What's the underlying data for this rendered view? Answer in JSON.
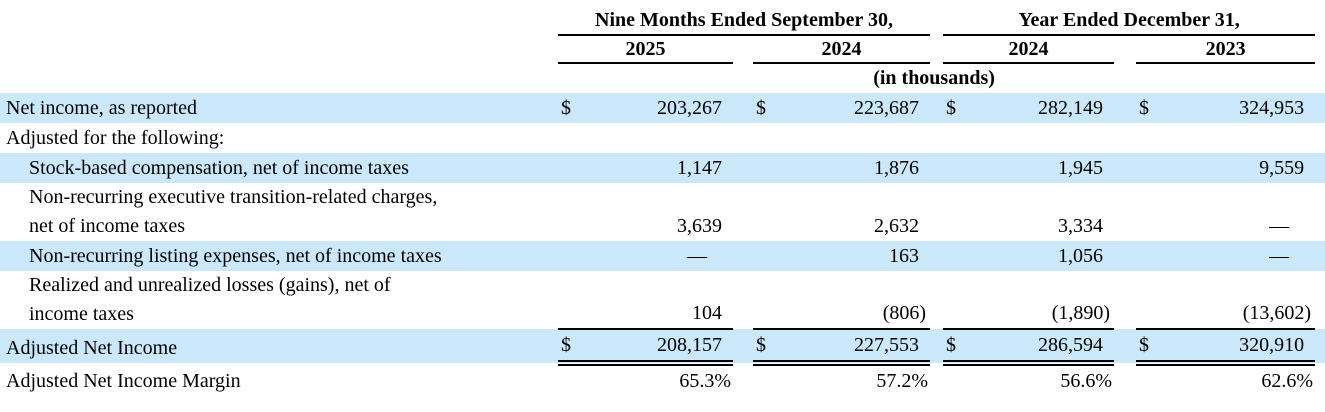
{
  "table": {
    "currency_symbol": "$",
    "units_note": "(in thousands)",
    "col_groups": [
      {
        "label": "Nine Months Ended September 30,",
        "years": [
          "2025",
          "2024"
        ]
      },
      {
        "label": "Year Ended December 31,",
        "years": [
          "2024",
          "2023"
        ]
      }
    ],
    "rows": [
      {
        "label": "Net income, as reported",
        "indent": false,
        "highlight": true,
        "dollar": true,
        "total": false,
        "values": [
          "203,267",
          "223,687",
          "282,149",
          "324,953"
        ]
      },
      {
        "label": "Adjusted for the following:",
        "indent": false,
        "highlight": false,
        "dollar": false,
        "total": false,
        "values": null
      },
      {
        "label": "Stock-based compensation, net of income taxes",
        "indent": true,
        "highlight": true,
        "dollar": false,
        "total": false,
        "values": [
          "1,147",
          "1,876",
          "1,945",
          "9,559"
        ]
      },
      {
        "label": "Non-recurring executive transition-related charges,\nnet of income taxes",
        "indent": true,
        "highlight": false,
        "dollar": false,
        "total": false,
        "values": [
          "3,639",
          "2,632",
          "3,334",
          "—"
        ]
      },
      {
        "label": "Non-recurring listing expenses, net of income taxes",
        "indent": true,
        "highlight": true,
        "dollar": false,
        "total": false,
        "values": [
          "—",
          "163",
          "1,056",
          "—"
        ]
      },
      {
        "label": "Realized and unrealized losses (gains), net of\nincome taxes",
        "indent": true,
        "highlight": false,
        "dollar": false,
        "total": false,
        "values": [
          "104",
          "(806)",
          "(1,890)",
          "(13,602)"
        ]
      },
      {
        "label": "Adjusted Net Income",
        "indent": false,
        "highlight": true,
        "dollar": true,
        "total": true,
        "values": [
          "208,157",
          "227,553",
          "286,594",
          "320,910"
        ]
      },
      {
        "label": "Adjusted Net Income Margin",
        "indent": false,
        "highlight": false,
        "dollar": false,
        "total": false,
        "values": [
          "65.3%",
          "57.2%",
          "56.6%",
          "62.6%"
        ]
      }
    ]
  }
}
